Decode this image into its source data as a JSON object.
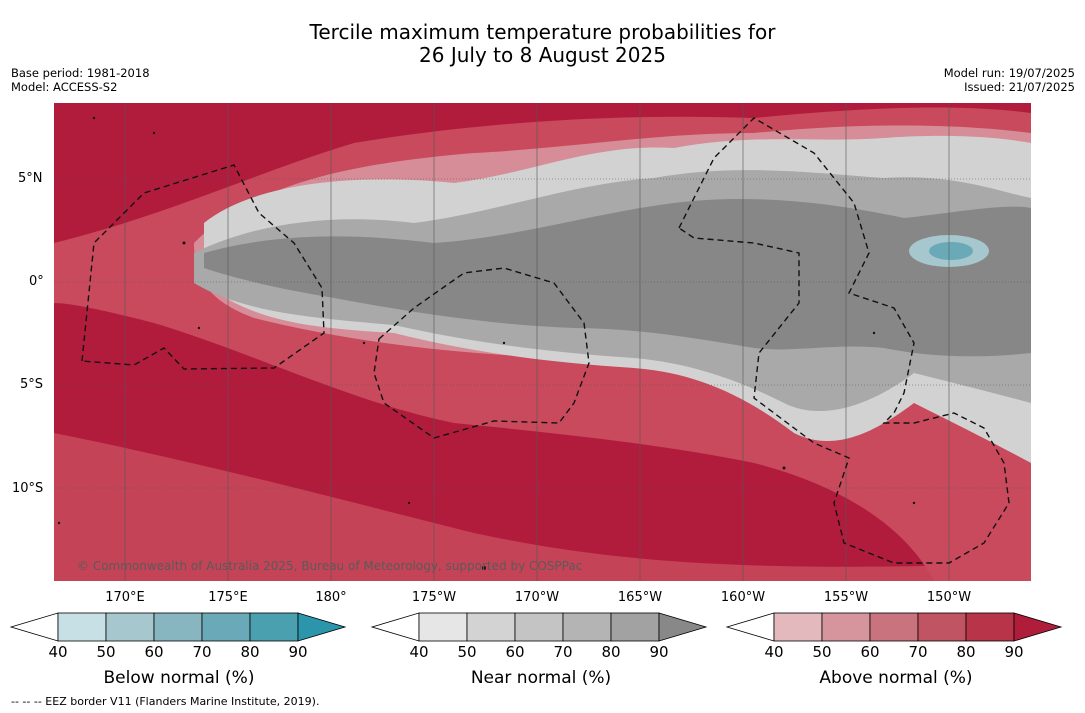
{
  "title": {
    "line1": "Tercile maximum temperature probabilities for",
    "line2": "26 July to 8 August 2025"
  },
  "meta_left": {
    "base_period": "Base period: 1981-2018",
    "model": "Model: ACCESS-S2"
  },
  "meta_right": {
    "model_run": "Model run: 19/07/2025",
    "issued": "Issued: 21/07/2025"
  },
  "map": {
    "latitude_labels": [
      "5°N",
      "0°",
      "5°S",
      "10°S"
    ],
    "longitude_labels": [
      "170°E",
      "175°E",
      "180°",
      "175°W",
      "170°W",
      "165°W",
      "160°W",
      "155°W",
      "150°W"
    ],
    "copyright": "© Commonwealth of Australia 2025, Bureau of Meteorology, supported by COSPPac",
    "colors": {
      "above_strong": "#b21c3c",
      "above_mid": "#c84a5c",
      "above_light": "#d78d97",
      "near_strong": "#878787",
      "near_mid": "#a9a9a9",
      "near_light": "#d2d2d2",
      "below_mid": "#7fb6c2"
    }
  },
  "legends": [
    {
      "label": "Below normal (%)",
      "ticks": [
        "40",
        "50",
        "60",
        "70",
        "80",
        "90"
      ],
      "colors": [
        "#ffffff",
        "#c7e0e6",
        "#a6c7cd",
        "#88b6c0",
        "#6aa9b7",
        "#4ba0b0",
        "#2a95ab"
      ]
    },
    {
      "label": "Near normal (%)",
      "ticks": [
        "40",
        "50",
        "60",
        "70",
        "80",
        "90"
      ],
      "colors": [
        "#ffffff",
        "#e6e6e6",
        "#d3d3d3",
        "#c4c4c4",
        "#b4b4b4",
        "#a2a2a2",
        "#888888"
      ]
    },
    {
      "label": "Above normal (%)",
      "ticks": [
        "40",
        "50",
        "60",
        "70",
        "80",
        "90"
      ],
      "colors": [
        "#ffffff",
        "#e3b9be",
        "#d6959c",
        "#c8737d",
        "#c05462",
        "#b83549",
        "#b01d3b"
      ]
    }
  ],
  "footnote": "--  --  -- EEZ border V11 (Flanders Marine Institute, 2019)."
}
